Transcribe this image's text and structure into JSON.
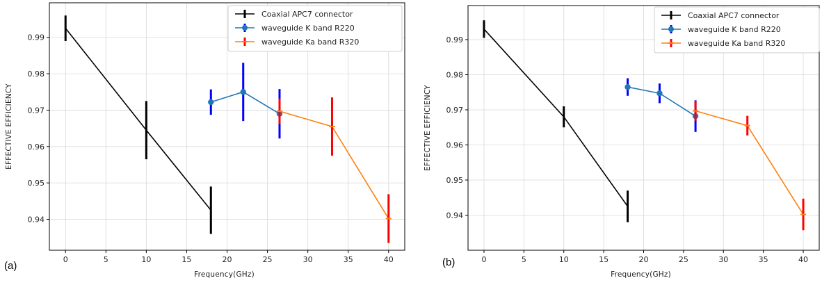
{
  "chart_data": [
    {
      "panel": "(a)",
      "type": "line",
      "xlabel": "Frequency(GHz)",
      "ylabel": "EFFECTIVE  EFFICIENCY",
      "xlim": [
        -2,
        42
      ],
      "ylim": [
        0.9315,
        0.9995
      ],
      "xticks": [
        0,
        5,
        10,
        15,
        20,
        25,
        30,
        35,
        40
      ],
      "yticks": [
        0.94,
        0.95,
        0.96,
        0.97,
        0.98,
        0.99
      ],
      "grid": true,
      "legend_position": "top-right",
      "series": [
        {
          "name": "Coaxial APC7 connector",
          "color": "#000000",
          "errcolor": "#000000",
          "marker": "none",
          "x": [
            0,
            10,
            18
          ],
          "y": [
            0.9925,
            0.9645,
            0.9425
          ],
          "err": [
            0.0035,
            0.008,
            0.0065
          ]
        },
        {
          "name": "waveguide K band R220",
          "color": "#1f77b4",
          "errcolor": "#0000ff",
          "marker": "circle",
          "x": [
            18,
            22,
            26.5
          ],
          "y": [
            0.9722,
            0.975,
            0.969
          ],
          "err": [
            0.0035,
            0.008,
            0.0068
          ]
        },
        {
          "name": "waveguide Ka band R320",
          "color": "#ff7f0e",
          "errcolor": "#ff0000",
          "marker": "cross",
          "x": [
            26.5,
            33,
            40
          ],
          "y": [
            0.9697,
            0.9655,
            0.9402
          ],
          "err": [
            0.0035,
            0.008,
            0.0067
          ]
        }
      ]
    },
    {
      "panel": "(b)",
      "type": "line",
      "xlabel": "Frequency(GHz)",
      "ylabel": "EFFECTIVE  EFFICIENCY",
      "xlim": [
        -2,
        42
      ],
      "ylim": [
        0.93,
        0.9997
      ],
      "xticks": [
        0,
        5,
        10,
        15,
        20,
        25,
        30,
        35,
        40
      ],
      "yticks": [
        0.94,
        0.95,
        0.96,
        0.97,
        0.98,
        0.99
      ],
      "grid": true,
      "legend_position": "top-right",
      "series": [
        {
          "name": "Coaxial APC7 connector",
          "color": "#000000",
          "errcolor": "#000000",
          "marker": "none",
          "x": [
            0,
            10,
            18
          ],
          "y": [
            0.993,
            0.968,
            0.9425
          ],
          "err": [
            0.0025,
            0.003,
            0.0045
          ]
        },
        {
          "name": "waveguide K band R220",
          "color": "#1f77b4",
          "errcolor": "#0000ff",
          "marker": "circle",
          "x": [
            18,
            22,
            26.5
          ],
          "y": [
            0.9765,
            0.9747,
            0.9682
          ],
          "err": [
            0.0025,
            0.0028,
            0.0045
          ]
        },
        {
          "name": "waveguide Ka band R320",
          "color": "#ff7f0e",
          "errcolor": "#ff0000",
          "marker": "cross",
          "x": [
            26.5,
            33,
            40
          ],
          "y": [
            0.9697,
            0.9655,
            0.9402
          ],
          "err": [
            0.0028,
            0.0028,
            0.0045
          ]
        }
      ]
    }
  ]
}
